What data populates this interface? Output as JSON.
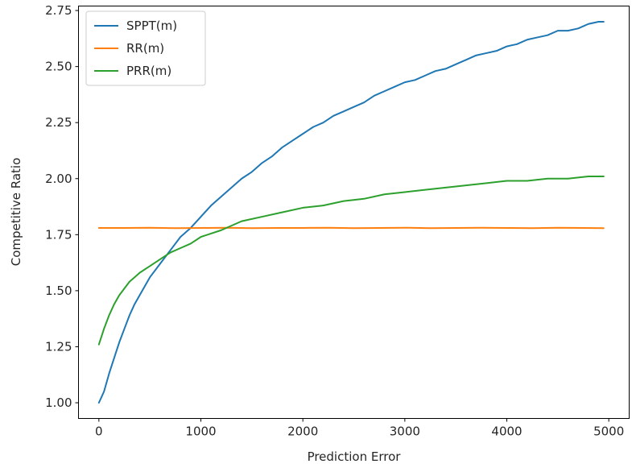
{
  "chart_data": {
    "type": "line",
    "title": "",
    "xlabel": "Prediction Error",
    "ylabel": "Competitive Ratio",
    "xlim": [
      -200,
      5200
    ],
    "ylim": [
      0.93,
      2.77
    ],
    "xticks": [
      0,
      1000,
      2000,
      3000,
      4000,
      5000
    ],
    "yticks": [
      1.0,
      1.25,
      1.5,
      1.75,
      2.0,
      2.25,
      2.5,
      2.75
    ],
    "xtick_labels": [
      "0",
      "1000",
      "2000",
      "3000",
      "4000",
      "5000"
    ],
    "ytick_labels": [
      "1.00",
      "1.25",
      "1.50",
      "1.75",
      "2.00",
      "2.25",
      "2.50",
      "2.75"
    ],
    "grid": false,
    "legend_position": "upper left",
    "series": [
      {
        "name": "SPPT(m)",
        "color": "#1f77b4",
        "x": [
          0,
          50,
          100,
          150,
          200,
          250,
          300,
          350,
          400,
          450,
          500,
          600,
          700,
          800,
          900,
          1000,
          1100,
          1200,
          1300,
          1400,
          1500,
          1600,
          1700,
          1800,
          1900,
          2000,
          2100,
          2200,
          2300,
          2400,
          2500,
          2600,
          2700,
          2800,
          2900,
          3000,
          3100,
          3200,
          3300,
          3400,
          3500,
          3600,
          3700,
          3800,
          3900,
          4000,
          4100,
          4200,
          4300,
          4400,
          4500,
          4600,
          4700,
          4800,
          4900,
          4950
        ],
        "y": [
          1.0,
          1.05,
          1.13,
          1.2,
          1.27,
          1.33,
          1.39,
          1.44,
          1.48,
          1.52,
          1.56,
          1.62,
          1.68,
          1.74,
          1.78,
          1.83,
          1.88,
          1.92,
          1.96,
          2.0,
          2.03,
          2.07,
          2.1,
          2.14,
          2.17,
          2.2,
          2.23,
          2.25,
          2.28,
          2.3,
          2.32,
          2.34,
          2.37,
          2.39,
          2.41,
          2.43,
          2.44,
          2.46,
          2.48,
          2.49,
          2.51,
          2.53,
          2.55,
          2.56,
          2.57,
          2.59,
          2.6,
          2.62,
          2.63,
          2.64,
          2.66,
          2.66,
          2.67,
          2.69,
          2.7,
          2.7
        ]
      },
      {
        "name": "RR(m)",
        "color": "#ff7f0e",
        "x": [
          0,
          250,
          500,
          750,
          1000,
          1250,
          1500,
          1750,
          2000,
          2250,
          2500,
          2750,
          3000,
          3250,
          3500,
          3750,
          4000,
          4250,
          4500,
          4750,
          4950
        ],
        "y": [
          1.78,
          1.78,
          1.781,
          1.779,
          1.78,
          1.781,
          1.779,
          1.78,
          1.78,
          1.781,
          1.779,
          1.78,
          1.781,
          1.779,
          1.78,
          1.781,
          1.78,
          1.779,
          1.781,
          1.78,
          1.779
        ]
      },
      {
        "name": "PRR(m)",
        "color": "#2ca02c",
        "x": [
          0,
          50,
          100,
          150,
          200,
          250,
          300,
          350,
          400,
          500,
          600,
          700,
          800,
          900,
          1000,
          1200,
          1400,
          1600,
          1800,
          2000,
          2200,
          2400,
          2600,
          2800,
          3000,
          3200,
          3400,
          3600,
          3800,
          4000,
          4200,
          4400,
          4600,
          4800,
          4950
        ],
        "y": [
          1.26,
          1.33,
          1.39,
          1.44,
          1.48,
          1.51,
          1.54,
          1.56,
          1.58,
          1.61,
          1.64,
          1.67,
          1.69,
          1.71,
          1.74,
          1.77,
          1.81,
          1.83,
          1.85,
          1.87,
          1.88,
          1.9,
          1.91,
          1.93,
          1.94,
          1.95,
          1.96,
          1.97,
          1.98,
          1.99,
          1.99,
          2.0,
          2.0,
          2.01,
          2.01
        ]
      }
    ]
  }
}
